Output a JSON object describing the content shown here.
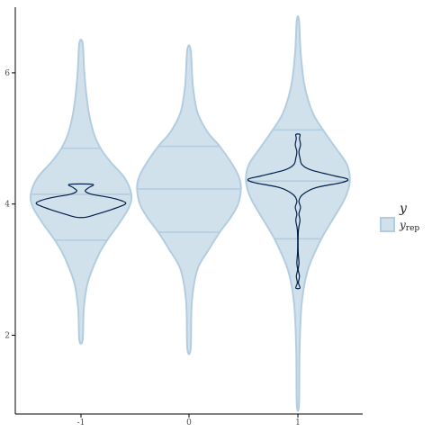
{
  "chart_data": {
    "type": "violin",
    "x_categories": [
      "-1",
      "0",
      "1"
    ],
    "y_ticks": [
      2,
      4,
      6
    ],
    "ylim": [
      0.8,
      7.0
    ],
    "grid": false,
    "legend": {
      "title": "y",
      "entries": [
        {
          "label_main": "y",
          "label_sub": "rep",
          "fill": "#d1e1ec",
          "stroke": "#b3cde0"
        }
      ],
      "position": "right"
    },
    "colors": {
      "yrep_fill": "#d1e1ec",
      "yrep_stroke": "#b3cde0",
      "y_stroke": "#011f4b",
      "axis": "#000000"
    },
    "yrep_violins": [
      {
        "x": "-1",
        "quantiles": [
          3.45,
          4.15,
          4.85
        ],
        "profile": [
          [
            1.93,
            0.03
          ],
          [
            2.4,
            0.05
          ],
          [
            2.8,
            0.12
          ],
          [
            3.2,
            0.3
          ],
          [
            3.45,
            0.47
          ],
          [
            3.7,
            0.68
          ],
          [
            3.95,
            0.86
          ],
          [
            4.15,
            0.9
          ],
          [
            4.4,
            0.78
          ],
          [
            4.65,
            0.52
          ],
          [
            4.85,
            0.35
          ],
          [
            5.1,
            0.22
          ],
          [
            5.5,
            0.12
          ],
          [
            6.0,
            0.06
          ],
          [
            6.45,
            0.03
          ]
        ]
      },
      {
        "x": "0",
        "quantiles": [
          3.57,
          4.23,
          4.88
        ],
        "profile": [
          [
            1.8,
            0.03
          ],
          [
            2.5,
            0.05
          ],
          [
            3.0,
            0.15
          ],
          [
            3.3,
            0.35
          ],
          [
            3.57,
            0.55
          ],
          [
            3.8,
            0.75
          ],
          [
            4.0,
            0.88
          ],
          [
            4.23,
            0.93
          ],
          [
            4.4,
            0.9
          ],
          [
            4.6,
            0.78
          ],
          [
            4.88,
            0.55
          ],
          [
            5.1,
            0.33
          ],
          [
            5.4,
            0.15
          ],
          [
            5.8,
            0.07
          ],
          [
            6.35,
            0.03
          ]
        ]
      },
      {
        "x": "1",
        "quantiles": [
          3.47,
          4.35,
          5.13
        ],
        "profile": [
          [
            0.95,
            0.02
          ],
          [
            1.8,
            0.03
          ],
          [
            2.5,
            0.07
          ],
          [
            3.0,
            0.18
          ],
          [
            3.47,
            0.42
          ],
          [
            3.8,
            0.65
          ],
          [
            4.1,
            0.85
          ],
          [
            4.35,
            0.93
          ],
          [
            4.6,
            0.88
          ],
          [
            4.85,
            0.68
          ],
          [
            5.13,
            0.45
          ],
          [
            5.4,
            0.26
          ],
          [
            5.8,
            0.12
          ],
          [
            6.3,
            0.05
          ],
          [
            6.8,
            0.02
          ]
        ]
      }
    ],
    "y_violins": [
      {
        "x": "-1",
        "profile": [
          [
            3.8,
            0.1
          ],
          [
            3.85,
            0.32
          ],
          [
            3.92,
            0.6
          ],
          [
            4.0,
            0.85
          ],
          [
            4.05,
            0.78
          ],
          [
            4.1,
            0.55
          ],
          [
            4.15,
            0.2
          ],
          [
            4.2,
            0.08
          ],
          [
            4.25,
            0.15
          ],
          [
            4.3,
            0.22
          ]
        ]
      },
      {
        "x": "1",
        "profile": [
          [
            2.72,
            0.04
          ],
          [
            2.8,
            0.01
          ],
          [
            2.9,
            0.03
          ],
          [
            3.0,
            0.005
          ],
          [
            3.1,
            0.02
          ],
          [
            3.3,
            0.005
          ],
          [
            3.6,
            0.01
          ],
          [
            3.75,
            0.04
          ],
          [
            3.85,
            0.02
          ],
          [
            3.95,
            0.05
          ],
          [
            4.05,
            0.02
          ],
          [
            4.15,
            0.1
          ],
          [
            4.25,
            0.35
          ],
          [
            4.33,
            0.85
          ],
          [
            4.38,
            0.95
          ],
          [
            4.43,
            0.7
          ],
          [
            4.52,
            0.25
          ],
          [
            4.6,
            0.08
          ],
          [
            4.7,
            0.04
          ],
          [
            4.8,
            0.02
          ],
          [
            4.9,
            0.05
          ],
          [
            5.0,
            0.03
          ],
          [
            5.06,
            0.04
          ]
        ]
      }
    ]
  }
}
